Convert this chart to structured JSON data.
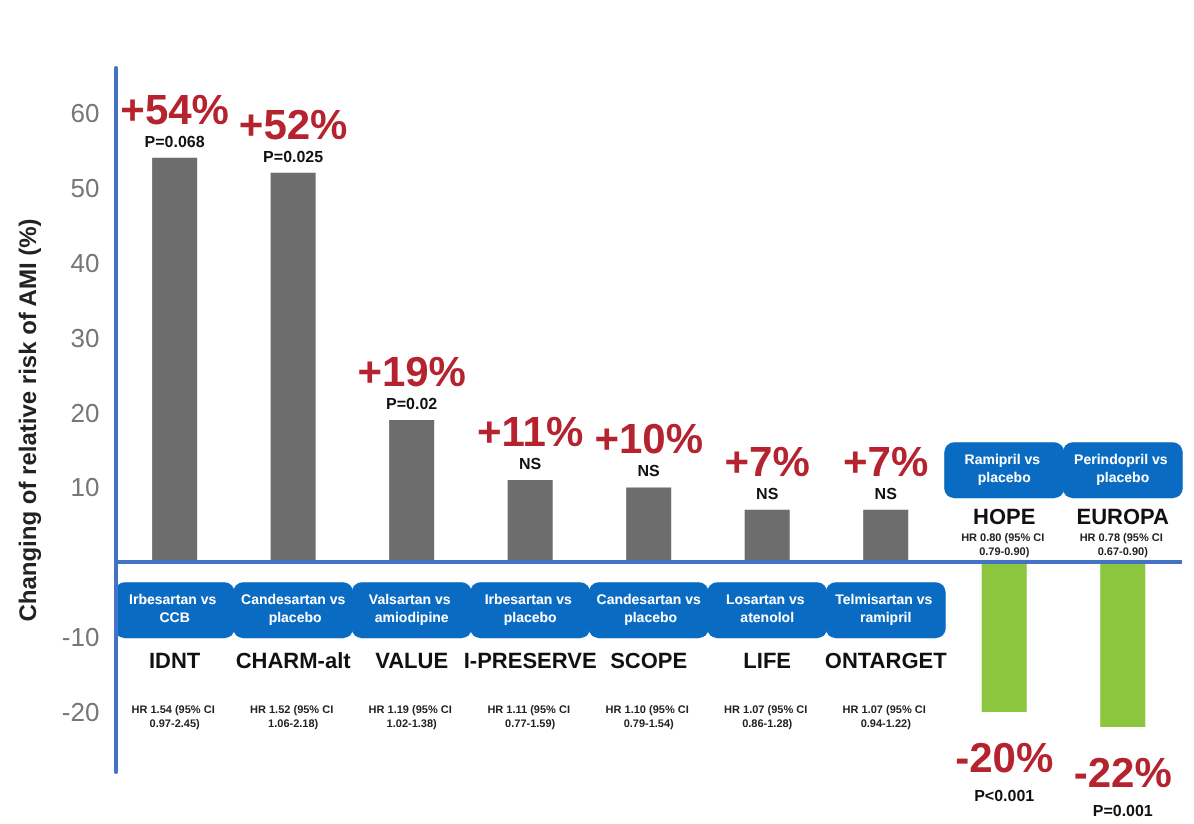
{
  "chart_data": {
    "type": "bar",
    "ylabel": "Changing of relative risk of AMI (%)",
    "categories": [
      "IDNT",
      "CHARM-alt",
      "VALUE",
      "I-PRESERVE",
      "SCOPE",
      "LIFE",
      "ONTARGET",
      "HOPE",
      "EUROPA"
    ],
    "values": [
      54,
      52,
      19,
      11,
      10,
      7,
      7,
      -20,
      -22
    ],
    "colors": [
      "#6d6d6d",
      "#6d6d6d",
      "#6d6d6d",
      "#6d6d6d",
      "#6d6d6d",
      "#6d6d6d",
      "#6d6d6d",
      "#8cc63f",
      "#8cc63f"
    ],
    "value_labels": [
      "+54%",
      "+52%",
      "+19%",
      "+11%",
      "+10%",
      "+7%",
      "+7%",
      "-20%",
      "-22%"
    ],
    "ylim": [
      -28,
      66
    ],
    "yticks": [
      -20,
      -10,
      10,
      20,
      30,
      40,
      50,
      60
    ],
    "ref_lines": [
      {
        "axis": "y",
        "value": 0,
        "color": "#4472c4"
      }
    ],
    "annotations": [
      "P=0.068",
      "Irbesartan vs CCB",
      "HR 1.54 (95% CI 0.97-2.45)",
      "P=0.025",
      "Candesartan vs placebo",
      "HR 1.52 (95% CI 1.06-2.18)",
      "P=0.02",
      "Valsartan vs amiodipine",
      "HR 1.19 (95% CI 1.02-1.38)",
      "NS",
      "Irbesartan vs placebo",
      "HR 1.11 (95% CI 0.77-1.59)",
      "NS",
      "Candesartan vs placebo",
      "HR 1.10 (95% CI 0.79-1.54)",
      "NS",
      "Losartan vs atenolol",
      "HR 1.07 (95% CI 0.86-1.28)",
      "NS",
      "Telmisartan vs ramipril",
      "HR 1.07 (95% CI 0.94-1.22)",
      "P<0.001",
      "Ramipril vs placebo",
      "HR 0.80 (95% CI 0.79-0.90)",
      "P=0.001",
      "Perindopril vs placebo",
      "HR 0.78 (95% CI 0.67-0.90)"
    ]
  }
}
